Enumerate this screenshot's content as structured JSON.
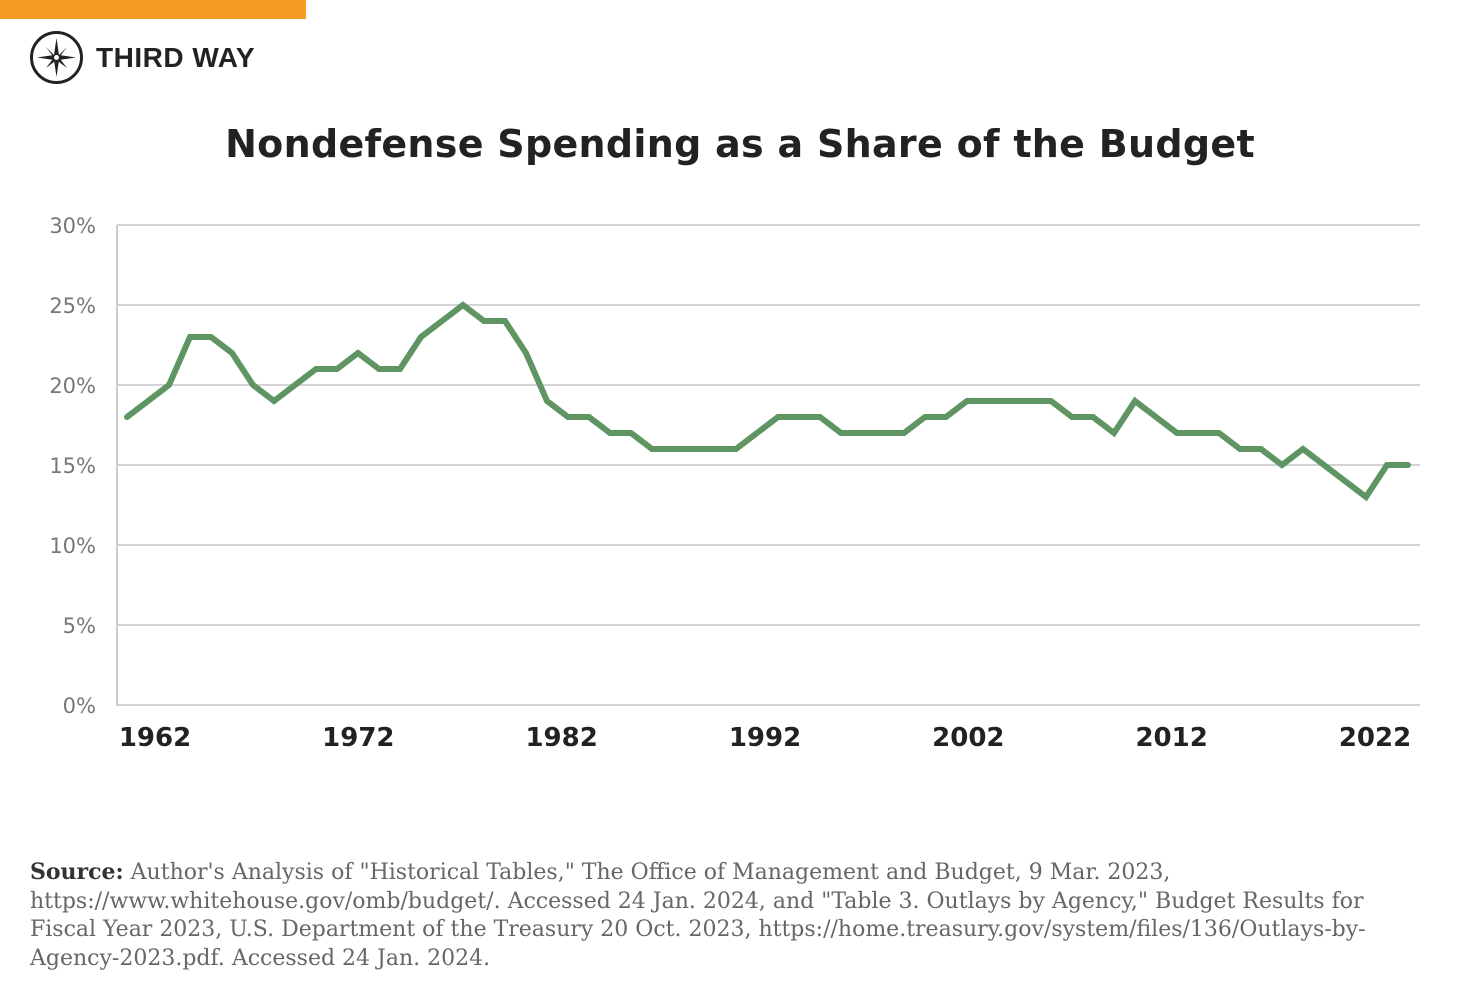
{
  "brand": {
    "name": "THIRD WAY",
    "accent_color": "#f79c22",
    "logo_icon": "compass-star-icon"
  },
  "chart_data": {
    "type": "line",
    "title": "Nondefense Spending as a Share of the Budget",
    "xlabel": "",
    "ylabel": "",
    "x": [
      1962,
      1963,
      1964,
      1965,
      1966,
      1967,
      1968,
      1969,
      1970,
      1971,
      1972,
      1973,
      1974,
      1975,
      1976,
      1977,
      1978,
      1979,
      1980,
      1981,
      1982,
      1983,
      1984,
      1985,
      1986,
      1987,
      1988,
      1989,
      1990,
      1991,
      1992,
      1993,
      1994,
      1995,
      1996,
      1997,
      1998,
      1999,
      2000,
      2001,
      2002,
      2003,
      2004,
      2005,
      2006,
      2007,
      2008,
      2009,
      2010,
      2011,
      2012,
      2013,
      2014,
      2015,
      2016,
      2017,
      2018,
      2019,
      2020,
      2021,
      2022,
      2023
    ],
    "series": [
      {
        "color": "#5f9463",
        "values": [
          18,
          19,
          20,
          23,
          23,
          22,
          20,
          19,
          20,
          21,
          21,
          22,
          21,
          21,
          23,
          24,
          25,
          24,
          24,
          22,
          19,
          18,
          18,
          17,
          17,
          16,
          16,
          16,
          16,
          16,
          17,
          18,
          18,
          18,
          17,
          17,
          17,
          17,
          18,
          18,
          19,
          19,
          19,
          19,
          19,
          18,
          18,
          17,
          19,
          18,
          17,
          17,
          17,
          16,
          16,
          15,
          16,
          15,
          14,
          13,
          15,
          15
        ]
      }
    ],
    "ylim": [
      0,
      30
    ],
    "yticks": [
      0,
      5,
      10,
      15,
      20,
      25,
      30
    ],
    "ytick_labels": [
      "0%",
      "5%",
      "10%",
      "15%",
      "20%",
      "25%",
      "30%"
    ],
    "xtick_labels": [
      "1962",
      "1972",
      "1982",
      "1992",
      "2002",
      "2012",
      "2022"
    ],
    "grid": true,
    "legend": "none"
  },
  "source": {
    "label": "Source:",
    "text": "Author's Analysis of \"Historical Tables,\" The Office of Management and Budget, 9 Mar. 2023, https://www.whitehouse.gov/omb/budget/. Accessed 24 Jan. 2024, and \"Table 3. Outlays by Agency,\" Budget Results for Fiscal Year 2023, U.S. Department of the Treasury 20 Oct. 2023, https://home.treasury.gov/system/files/136/Outlays-by-Agency-2023.pdf. Accessed 24 Jan. 2024."
  }
}
